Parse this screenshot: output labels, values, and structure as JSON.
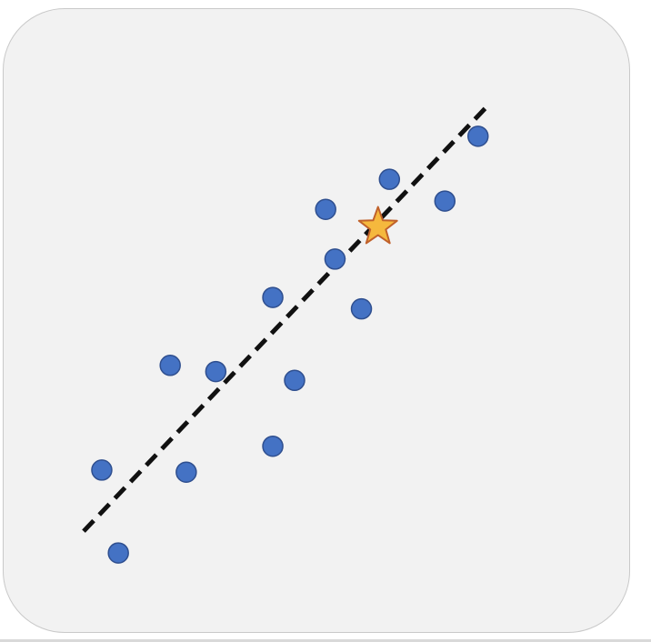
{
  "chart_data": {
    "type": "scatter",
    "title": "",
    "xlabel": "",
    "ylabel": "",
    "grid": false,
    "legend": "none",
    "xlim": [
      0,
      100
    ],
    "ylim": [
      0,
      100
    ],
    "points": [
      {
        "x": 3.5,
        "y": 24.4
      },
      {
        "x": 6.7,
        "y": 8.4
      },
      {
        "x": 16.7,
        "y": 44.6
      },
      {
        "x": 19.8,
        "y": 24.0
      },
      {
        "x": 25.5,
        "y": 43.4
      },
      {
        "x": 36.5,
        "y": 29.0
      },
      {
        "x": 36.5,
        "y": 57.7
      },
      {
        "x": 40.7,
        "y": 41.7
      },
      {
        "x": 46.7,
        "y": 74.7
      },
      {
        "x": 48.5,
        "y": 65.1
      },
      {
        "x": 53.6,
        "y": 55.5
      },
      {
        "x": 59.0,
        "y": 80.5
      },
      {
        "x": 69.7,
        "y": 76.3
      },
      {
        "x": 76.1,
        "y": 88.8
      }
    ],
    "highlight": {
      "x": 56.8,
      "y": 71.3,
      "marker": "star"
    },
    "trendline": {
      "style": "dashed",
      "x": [
        0,
        77.5
      ],
      "y": [
        12.6,
        94.2
      ]
    },
    "colors": {
      "points": "#4472c4",
      "point_edge": "#2f4f8f",
      "star_fill": "#f5b83d",
      "star_edge": "#c0612b",
      "trendline": "#111111",
      "background": "#f2f2f2"
    }
  }
}
